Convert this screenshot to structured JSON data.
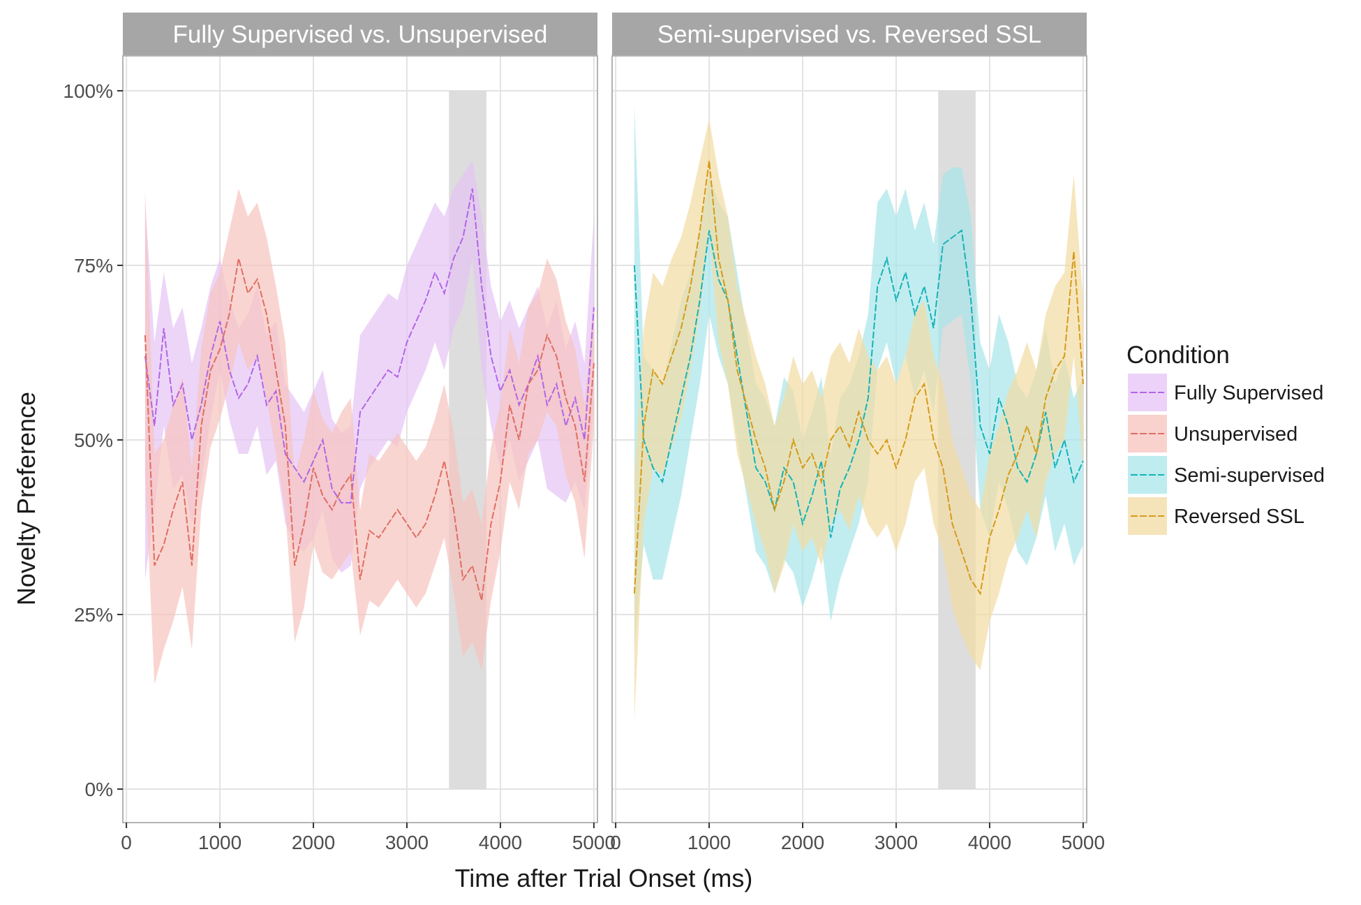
{
  "chart_data": {
    "type": "line",
    "xlabel": "Time after Trial Onset (ms)",
    "ylabel": "Novelty Preference",
    "xlim": [
      0,
      5000
    ],
    "ylim": [
      0,
      1
    ],
    "x_ticks": [
      "0",
      "1000",
      "2000",
      "3000",
      "4000",
      "5000"
    ],
    "y_ticks": [
      "0%",
      "25%",
      "50%",
      "75%",
      "100%"
    ],
    "grid": true,
    "legend": {
      "title": "Condition",
      "position": "right",
      "entries": [
        "Fully Supervised",
        "Unsupervised",
        "Semi-supervised",
        "Reversed SSL"
      ]
    },
    "colors": {
      "Fully Supervised": "#b266e6",
      "Unsupervised": "#e06d63",
      "Semi-supervised": "#13b3b8",
      "Reversed SSL": "#d69a18"
    },
    "band_colors": {
      "Fully Supervised": "#e6c3f5",
      "Unsupervised": "#f7c3be",
      "Semi-supervised": "#a8e6ea",
      "Reversed SSL": "#f2dba3"
    },
    "highlight_window": [
      3450,
      3850
    ],
    "panels": [
      {
        "title": "Fully Supervised vs. Unsupervised",
        "series": [
          {
            "name": "Fully Supervised",
            "x": [
              200,
              300,
              400,
              500,
              600,
              700,
              800,
              900,
              1000,
              1100,
              1200,
              1300,
              1400,
              1500,
              1600,
              1700,
              1800,
              1900,
              2000,
              2100,
              2200,
              2300,
              2400,
              2500,
              2600,
              2700,
              2800,
              2900,
              3000,
              3100,
              3200,
              3300,
              3400,
              3500,
              3600,
              3700,
              3800,
              3900,
              4000,
              4100,
              4200,
              4300,
              4400,
              4500,
              4600,
              4700,
              4800,
              4900,
              5000
            ],
            "y": [
              0.62,
              0.52,
              0.66,
              0.55,
              0.58,
              0.5,
              0.55,
              0.62,
              0.67,
              0.6,
              0.56,
              0.58,
              0.62,
              0.55,
              0.57,
              0.48,
              0.46,
              0.44,
              0.47,
              0.5,
              0.43,
              0.41,
              0.41,
              0.54,
              0.56,
              0.58,
              0.6,
              0.59,
              0.64,
              0.67,
              0.7,
              0.74,
              0.71,
              0.76,
              0.79,
              0.86,
              0.72,
              0.62,
              0.57,
              0.6,
              0.55,
              0.58,
              0.62,
              0.55,
              0.58,
              0.52,
              0.56,
              0.5,
              0.69
            ],
            "lower": [
              0.3,
              0.4,
              0.52,
              0.43,
              0.45,
              0.38,
              0.44,
              0.53,
              0.6,
              0.53,
              0.48,
              0.48,
              0.52,
              0.45,
              0.47,
              0.38,
              0.35,
              0.34,
              0.36,
              0.4,
              0.33,
              0.31,
              0.32,
              0.43,
              0.46,
              0.48,
              0.5,
              0.49,
              0.54,
              0.57,
              0.6,
              0.64,
              0.6,
              0.66,
              0.69,
              0.76,
              0.6,
              0.52,
              0.46,
              0.5,
              0.44,
              0.47,
              0.5,
              0.43,
              0.42,
              0.41,
              0.44,
              0.4,
              0.55
            ],
            "upper": [
              0.84,
              0.64,
              0.74,
              0.66,
              0.69,
              0.61,
              0.66,
              0.72,
              0.76,
              0.7,
              0.66,
              0.68,
              0.72,
              0.65,
              0.67,
              0.58,
              0.56,
              0.54,
              0.57,
              0.6,
              0.53,
              0.51,
              0.52,
              0.65,
              0.67,
              0.69,
              0.71,
              0.7,
              0.75,
              0.78,
              0.81,
              0.84,
              0.82,
              0.86,
              0.88,
              0.9,
              0.82,
              0.72,
              0.67,
              0.7,
              0.66,
              0.69,
              0.72,
              0.66,
              0.7,
              0.63,
              0.67,
              0.61,
              0.82
            ]
          },
          {
            "name": "Unsupervised",
            "x": [
              200,
              300,
              400,
              500,
              600,
              700,
              800,
              900,
              1000,
              1100,
              1200,
              1300,
              1400,
              1500,
              1600,
              1700,
              1800,
              1900,
              2000,
              2100,
              2200,
              2300,
              2400,
              2500,
              2600,
              2700,
              2800,
              2900,
              3000,
              3100,
              3200,
              3300,
              3400,
              3500,
              3600,
              3700,
              3800,
              3900,
              4000,
              4100,
              4200,
              4300,
              4400,
              4500,
              4600,
              4700,
              4800,
              4900,
              5000
            ],
            "y": [
              0.65,
              0.32,
              0.35,
              0.4,
              0.44,
              0.32,
              0.52,
              0.6,
              0.63,
              0.68,
              0.76,
              0.71,
              0.73,
              0.68,
              0.6,
              0.52,
              0.32,
              0.38,
              0.46,
              0.42,
              0.4,
              0.43,
              0.45,
              0.3,
              0.37,
              0.36,
              0.38,
              0.4,
              0.38,
              0.36,
              0.38,
              0.42,
              0.47,
              0.4,
              0.3,
              0.32,
              0.27,
              0.38,
              0.44,
              0.55,
              0.5,
              0.58,
              0.6,
              0.65,
              0.62,
              0.56,
              0.52,
              0.44,
              0.61
            ],
            "lower": [
              0.45,
              0.15,
              0.2,
              0.24,
              0.29,
              0.2,
              0.4,
              0.49,
              0.53,
              0.58,
              0.64,
              0.6,
              0.62,
              0.56,
              0.48,
              0.4,
              0.21,
              0.26,
              0.35,
              0.31,
              0.3,
              0.32,
              0.34,
              0.22,
              0.27,
              0.26,
              0.28,
              0.3,
              0.28,
              0.26,
              0.28,
              0.32,
              0.36,
              0.28,
              0.19,
              0.21,
              0.17,
              0.27,
              0.34,
              0.44,
              0.4,
              0.48,
              0.5,
              0.54,
              0.52,
              0.45,
              0.41,
              0.33,
              0.52
            ],
            "upper": [
              0.86,
              0.48,
              0.5,
              0.55,
              0.59,
              0.46,
              0.63,
              0.71,
              0.74,
              0.8,
              0.86,
              0.82,
              0.84,
              0.79,
              0.72,
              0.64,
              0.45,
              0.5,
              0.57,
              0.53,
              0.51,
              0.54,
              0.56,
              0.4,
              0.48,
              0.47,
              0.49,
              0.51,
              0.49,
              0.47,
              0.49,
              0.53,
              0.58,
              0.51,
              0.41,
              0.43,
              0.38,
              0.49,
              0.55,
              0.66,
              0.61,
              0.69,
              0.71,
              0.76,
              0.73,
              0.67,
              0.63,
              0.55,
              0.7
            ]
          }
        ]
      },
      {
        "title": "Semi-supervised vs. Reversed SSL",
        "series": [
          {
            "name": "Semi-supervised",
            "x": [
              200,
              300,
              400,
              500,
              600,
              700,
              800,
              900,
              1000,
              1100,
              1200,
              1300,
              1400,
              1500,
              1600,
              1700,
              1800,
              1900,
              2000,
              2100,
              2200,
              2300,
              2400,
              2500,
              2600,
              2700,
              2800,
              2900,
              3000,
              3100,
              3200,
              3300,
              3400,
              3500,
              3600,
              3700,
              3800,
              3900,
              4000,
              4100,
              4200,
              4300,
              4400,
              4500,
              4600,
              4700,
              4800,
              4900,
              5000
            ],
            "y": [
              0.75,
              0.5,
              0.46,
              0.44,
              0.5,
              0.56,
              0.62,
              0.7,
              0.8,
              0.73,
              0.7,
              0.62,
              0.54,
              0.46,
              0.44,
              0.4,
              0.46,
              0.44,
              0.38,
              0.42,
              0.47,
              0.36,
              0.43,
              0.46,
              0.5,
              0.56,
              0.72,
              0.76,
              0.7,
              0.74,
              0.68,
              0.72,
              0.66,
              0.78,
              0.79,
              0.8,
              0.7,
              0.52,
              0.48,
              0.56,
              0.52,
              0.46,
              0.44,
              0.48,
              0.54,
              0.46,
              0.5,
              0.44,
              0.47
            ],
            "lower": [
              0.2,
              0.35,
              0.3,
              0.3,
              0.36,
              0.42,
              0.5,
              0.58,
              0.68,
              0.62,
              0.58,
              0.5,
              0.42,
              0.34,
              0.32,
              0.28,
              0.33,
              0.31,
              0.26,
              0.3,
              0.35,
              0.24,
              0.3,
              0.34,
              0.38,
              0.44,
              0.6,
              0.64,
              0.58,
              0.62,
              0.56,
              0.6,
              0.54,
              0.66,
              0.67,
              0.68,
              0.58,
              0.4,
              0.36,
              0.44,
              0.4,
              0.34,
              0.32,
              0.36,
              0.42,
              0.34,
              0.38,
              0.32,
              0.35
            ],
            "upper": [
              0.98,
              0.62,
              0.6,
              0.58,
              0.64,
              0.7,
              0.74,
              0.8,
              0.88,
              0.84,
              0.82,
              0.74,
              0.66,
              0.58,
              0.56,
              0.52,
              0.59,
              0.57,
              0.5,
              0.54,
              0.59,
              0.48,
              0.56,
              0.58,
              0.62,
              0.68,
              0.84,
              0.86,
              0.82,
              0.86,
              0.8,
              0.84,
              0.78,
              0.88,
              0.89,
              0.89,
              0.82,
              0.64,
              0.6,
              0.68,
              0.64,
              0.58,
              0.56,
              0.6,
              0.66,
              0.58,
              0.62,
              0.56,
              0.59
            ]
          },
          {
            "name": "Reversed SSL",
            "x": [
              200,
              300,
              400,
              500,
              600,
              700,
              800,
              900,
              1000,
              1100,
              1200,
              1300,
              1400,
              1500,
              1600,
              1700,
              1800,
              1900,
              2000,
              2100,
              2200,
              2300,
              2400,
              2500,
              2600,
              2700,
              2800,
              2900,
              3000,
              3100,
              3200,
              3300,
              3400,
              3500,
              3600,
              3700,
              3800,
              3900,
              4000,
              4100,
              4200,
              4300,
              4400,
              4500,
              4600,
              4700,
              4800,
              4900,
              5000
            ],
            "y": [
              0.28,
              0.52,
              0.6,
              0.58,
              0.62,
              0.66,
              0.72,
              0.8,
              0.9,
              0.76,
              0.7,
              0.6,
              0.55,
              0.5,
              0.46,
              0.4,
              0.44,
              0.5,
              0.46,
              0.48,
              0.44,
              0.5,
              0.52,
              0.49,
              0.54,
              0.5,
              0.48,
              0.5,
              0.46,
              0.5,
              0.56,
              0.58,
              0.5,
              0.46,
              0.38,
              0.34,
              0.3,
              0.28,
              0.36,
              0.4,
              0.45,
              0.48,
              0.52,
              0.48,
              0.56,
              0.6,
              0.62,
              0.77,
              0.58
            ],
            "lower": [
              0.1,
              0.38,
              0.46,
              0.45,
              0.49,
              0.53,
              0.6,
              0.68,
              0.8,
              0.64,
              0.58,
              0.48,
              0.43,
              0.38,
              0.34,
              0.28,
              0.32,
              0.38,
              0.34,
              0.36,
              0.32,
              0.38,
              0.4,
              0.37,
              0.42,
              0.38,
              0.36,
              0.38,
              0.34,
              0.38,
              0.44,
              0.46,
              0.38,
              0.34,
              0.26,
              0.22,
              0.19,
              0.17,
              0.24,
              0.28,
              0.33,
              0.36,
              0.4,
              0.36,
              0.44,
              0.48,
              0.5,
              0.62,
              0.46
            ],
            "upper": [
              0.45,
              0.66,
              0.74,
              0.72,
              0.76,
              0.79,
              0.84,
              0.9,
              0.96,
              0.88,
              0.82,
              0.72,
              0.67,
              0.62,
              0.58,
              0.52,
              0.56,
              0.62,
              0.58,
              0.6,
              0.56,
              0.62,
              0.64,
              0.61,
              0.66,
              0.62,
              0.6,
              0.62,
              0.58,
              0.62,
              0.68,
              0.7,
              0.62,
              0.58,
              0.5,
              0.46,
              0.42,
              0.4,
              0.48,
              0.52,
              0.57,
              0.6,
              0.64,
              0.6,
              0.68,
              0.72,
              0.74,
              0.88,
              0.7
            ]
          }
        ]
      }
    ]
  }
}
